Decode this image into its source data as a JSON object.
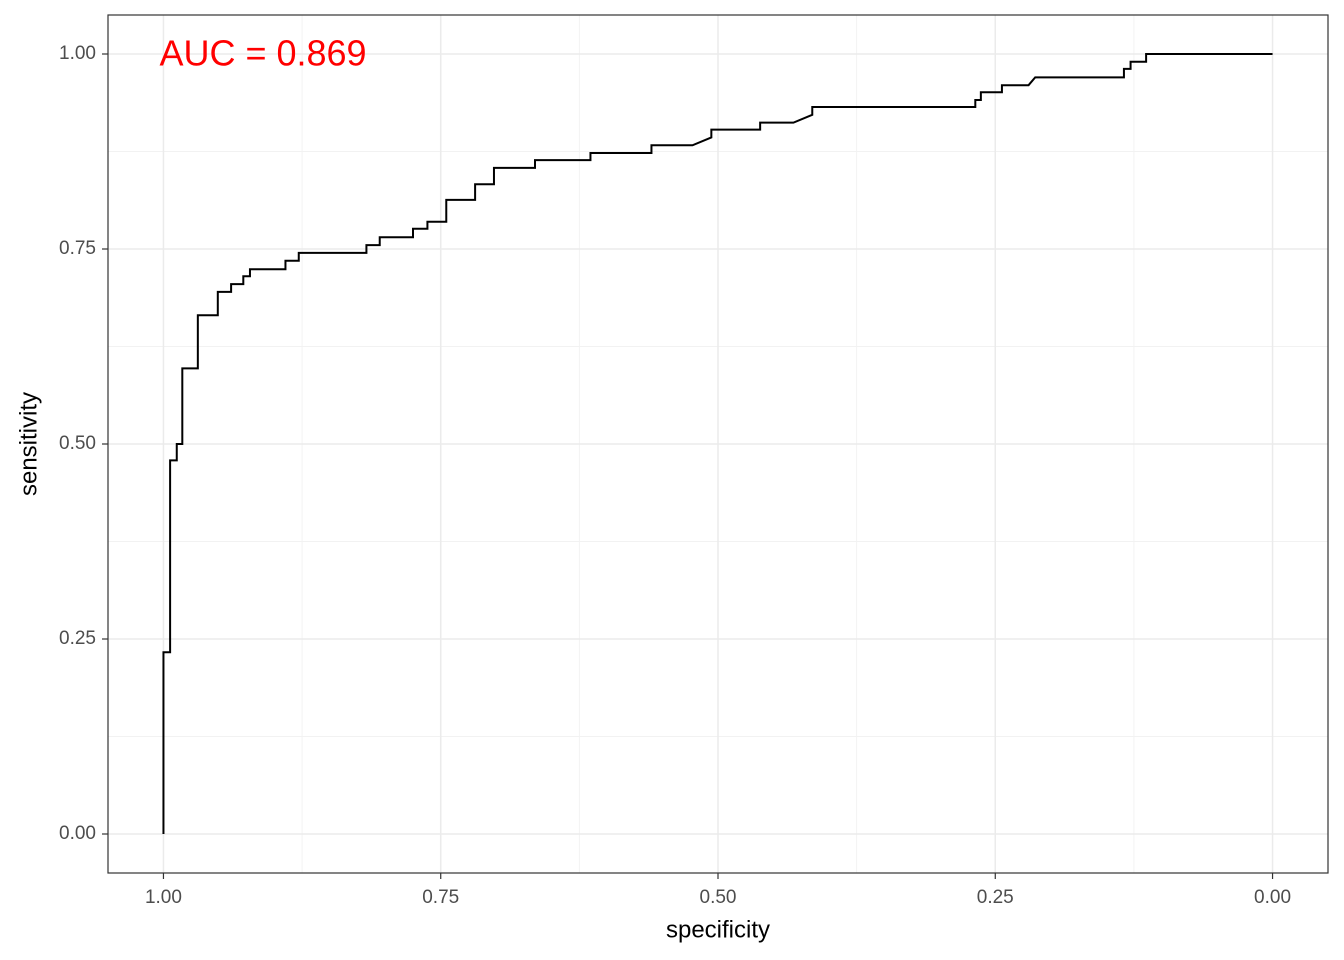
{
  "chart_data": {
    "type": "line",
    "x_label": "specificity",
    "y_label": "sensitivity",
    "annotation": "AUC =  0.869",
    "annotation_color": "#ff0000",
    "x": [
      1.0,
      1.0,
      0.994,
      0.994,
      0.988,
      0.988,
      0.983,
      0.983,
      0.969,
      0.969,
      0.951,
      0.951,
      0.939,
      0.939,
      0.928,
      0.928,
      0.922,
      0.922,
      0.89,
      0.89,
      0.878,
      0.878,
      0.817,
      0.817,
      0.805,
      0.805,
      0.775,
      0.775,
      0.762,
      0.762,
      0.745,
      0.745,
      0.719,
      0.719,
      0.702,
      0.702,
      0.665,
      0.665,
      0.615,
      0.615,
      0.56,
      0.56,
      0.523,
      0.506,
      0.506,
      0.462,
      0.462,
      0.432,
      0.415,
      0.415,
      0.268,
      0.268,
      0.263,
      0.263,
      0.244,
      0.244,
      0.22,
      0.214,
      0.134,
      0.134,
      0.128,
      0.128,
      0.114,
      0.114,
      0.0
    ],
    "values": [
      0.0,
      0.233,
      0.233,
      0.479,
      0.479,
      0.5,
      0.5,
      0.597,
      0.597,
      0.665,
      0.665,
      0.695,
      0.695,
      0.705,
      0.705,
      0.715,
      0.715,
      0.724,
      0.724,
      0.735,
      0.735,
      0.745,
      0.745,
      0.755,
      0.755,
      0.765,
      0.765,
      0.776,
      0.776,
      0.785,
      0.785,
      0.813,
      0.813,
      0.833,
      0.833,
      0.854,
      0.854,
      0.864,
      0.864,
      0.873,
      0.873,
      0.883,
      0.883,
      0.893,
      0.903,
      0.903,
      0.912,
      0.912,
      0.922,
      0.932,
      0.932,
      0.941,
      0.941,
      0.951,
      0.951,
      0.96,
      0.96,
      0.97,
      0.97,
      0.981,
      0.981,
      0.99,
      0.99,
      1.0,
      1.0
    ],
    "color": "#000000",
    "xlim": [
      1.05,
      -0.05
    ],
    "ylim": [
      -0.05,
      1.05
    ],
    "xticks": [
      {
        "value": 1,
        "label": "1.00"
      },
      {
        "value": 0.75,
        "label": "0.75"
      },
      {
        "value": 0.5,
        "label": "0.50"
      },
      {
        "value": 0.25,
        "label": "0.25"
      },
      {
        "value": 0,
        "label": "0.00"
      }
    ],
    "yticks": [
      {
        "value": 0,
        "label": "0.00"
      },
      {
        "value": 0.25,
        "label": "0.25"
      },
      {
        "value": 0.5,
        "label": "0.50"
      },
      {
        "value": 0.75,
        "label": "0.75"
      },
      {
        "value": 1,
        "label": "1.00"
      }
    ],
    "minor_xticks": [
      0.875,
      0.625,
      0.375,
      0.125
    ],
    "minor_yticks": [
      0.125,
      0.375,
      0.625,
      0.875
    ],
    "grid": true
  }
}
